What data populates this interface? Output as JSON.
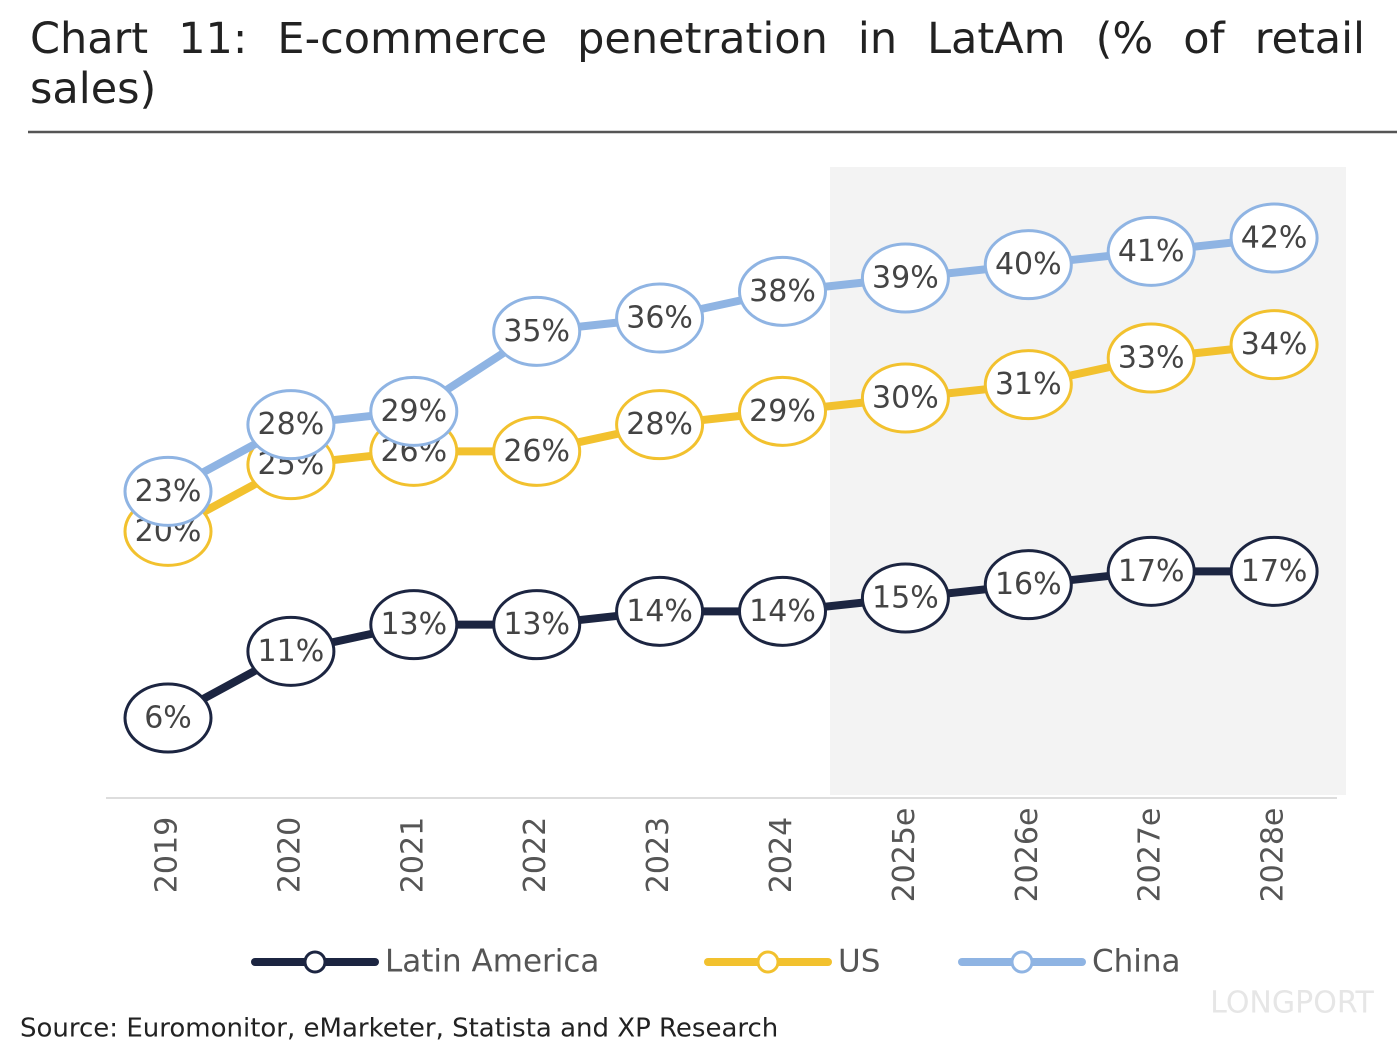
{
  "chart_data": {
    "type": "line",
    "title": "Chart 11: E-commerce penetration in LatAm (% of retail sales)",
    "source": "Source: Euromonitor, eMarketer, Statista and XP Research",
    "watermark": "LONGPORT",
    "categories": [
      "2019",
      "2020",
      "2021",
      "2022",
      "2023",
      "2024",
      "2025e",
      "2026e",
      "2027e",
      "2028e"
    ],
    "series": [
      {
        "name": "Latin America",
        "color": "#1c2541",
        "values": [
          6,
          11,
          13,
          13,
          14,
          14,
          15,
          16,
          17,
          17
        ],
        "value_labels": [
          "6%",
          "11%",
          "13%",
          "13%",
          "14%",
          "14%",
          "15%",
          "16%",
          "17%",
          "17%"
        ]
      },
      {
        "name": "US",
        "color": "#f2c12e",
        "values": [
          20,
          25,
          26,
          26,
          28,
          29,
          30,
          31,
          33,
          34
        ],
        "value_labels": [
          "20%",
          "25%",
          "26%",
          "26%",
          "28%",
          "29%",
          "30%",
          "31%",
          "33%",
          "34%"
        ]
      },
      {
        "name": "China",
        "color": "#8fb4e3",
        "values": [
          23,
          28,
          29,
          35,
          36,
          38,
          39,
          40,
          41,
          42
        ],
        "value_labels": [
          "23%",
          "28%",
          "29%",
          "35%",
          "36%",
          "38%",
          "39%",
          "40%",
          "41%",
          "42%"
        ]
      }
    ],
    "ylim": [
      0,
      45
    ]
  }
}
